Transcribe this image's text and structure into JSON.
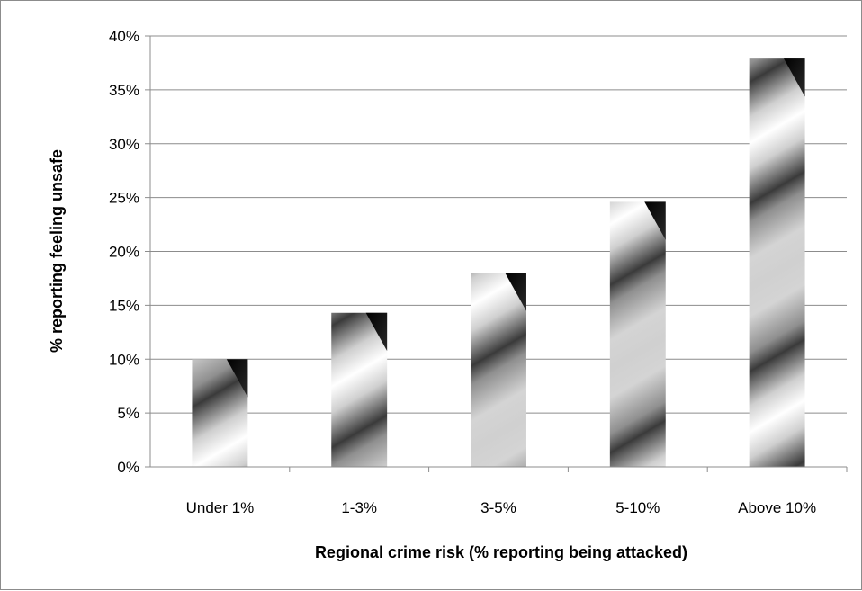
{
  "chart_data": {
    "type": "bar",
    "title": "",
    "xlabel": "Regional crime risk (% reporting being attacked)",
    "ylabel": "% reporting feeling unsafe",
    "categories": [
      "Under 1%",
      "1-3%",
      "3-5%",
      "5-10%",
      "Above 10%"
    ],
    "values": [
      10,
      14.3,
      18,
      24.6,
      37.9
    ],
    "ylim": [
      0,
      40
    ],
    "yticks": [
      0,
      5,
      10,
      15,
      20,
      25,
      30,
      35,
      40
    ],
    "ytick_labels": [
      "0%",
      "5%",
      "10%",
      "15%",
      "20%",
      "25%",
      "30%",
      "35%",
      "40%"
    ],
    "grid": "horizontal",
    "legend": "none"
  }
}
